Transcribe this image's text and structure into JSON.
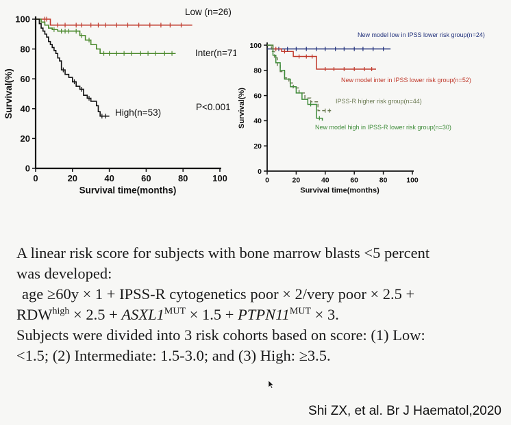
{
  "chart_data": [
    {
      "type": "line",
      "title": "",
      "xlabel": "Survival time(months)",
      "ylabel": "Survival(%)",
      "xlim": [
        0,
        100
      ],
      "ylim": [
        0,
        100
      ],
      "xticks": [
        "0",
        "20",
        "40",
        "60",
        "80",
        "100"
      ],
      "yticks": [
        "0",
        "20",
        "40",
        "60",
        "80",
        "100"
      ],
      "grid": false,
      "annotation": "P<0.001",
      "series": [
        {
          "name": "Low (n=26)",
          "color": "#c0392b",
          "x": [
            0,
            4,
            8,
            85
          ],
          "y": [
            100,
            100,
            96,
            96
          ],
          "censor_x": [
            5,
            6,
            12,
            16,
            22,
            25,
            30,
            34,
            38,
            44,
            50,
            56,
            62,
            68,
            73,
            79
          ]
        },
        {
          "name": "Inter(n=71)",
          "color": "#4c8a2e",
          "x": [
            0,
            3,
            5,
            7,
            9,
            12,
            20,
            24,
            27,
            30,
            33,
            35,
            76
          ],
          "y": [
            100,
            98,
            96,
            94,
            93,
            92,
            92,
            89,
            86,
            83,
            80,
            77,
            77
          ],
          "censor_x": [
            10,
            14,
            16,
            18,
            22,
            25,
            29,
            37,
            40,
            44,
            48,
            52,
            57,
            61,
            65,
            70,
            74
          ]
        },
        {
          "name": "High(n=53)",
          "color": "#111111",
          "x": [
            0,
            2,
            3,
            4,
            5,
            6,
            7,
            8,
            9,
            10,
            11,
            12,
            13,
            14,
            16,
            18,
            20,
            22,
            24,
            26,
            28,
            30,
            33,
            34,
            35,
            40
          ],
          "y": [
            100,
            97,
            94,
            92,
            90,
            88,
            85,
            83,
            81,
            79,
            77,
            74,
            72,
            66,
            63,
            61,
            58,
            55,
            53,
            49,
            47,
            45,
            42,
            38,
            35,
            35
          ],
          "censor_x": [
            15,
            21,
            25,
            29,
            36,
            38
          ]
        }
      ]
    },
    {
      "type": "line",
      "title": "",
      "xlabel": "Survival time(months)",
      "ylabel": "Survival(%)",
      "xlim": [
        0,
        100
      ],
      "ylim": [
        0,
        100
      ],
      "xticks": [
        "0",
        "20",
        "40",
        "60",
        "80",
        "100"
      ],
      "yticks": [
        "0",
        "20",
        "40",
        "60",
        "80",
        "100"
      ],
      "grid": false,
      "series": [
        {
          "name": "New model low in IPSS lower risk group(n=24)",
          "color": "#1f2f7a",
          "x": [
            0,
            85
          ],
          "y": [
            97,
            97
          ],
          "censor_x": [
            8,
            14,
            20,
            27,
            34,
            40,
            47,
            53,
            60,
            66,
            73,
            80
          ]
        },
        {
          "name": "New model inter in IPSS lower risk group(n=52)",
          "color": "#c0392b",
          "x": [
            0,
            4,
            10,
            18,
            34,
            75
          ],
          "y": [
            100,
            97,
            95,
            91,
            81,
            81
          ],
          "censor_x": [
            6,
            12,
            22,
            27,
            31,
            40,
            46,
            53,
            60,
            67,
            72
          ]
        },
        {
          "name": "IPSS-R higher risk group(n=44)",
          "color": "#6b7a52",
          "dashed": true,
          "x": [
            0,
            3,
            5,
            7,
            9,
            12,
            15,
            18,
            22,
            26,
            30,
            35,
            44
          ],
          "y": [
            100,
            95,
            90,
            84,
            79,
            74,
            70,
            66,
            62,
            58,
            55,
            48,
            48
          ],
          "censor_x": [
            40,
            43
          ]
        },
        {
          "name": "New model high in IPSS-R lower risk group(n=30)",
          "color": "#3f8c3a",
          "x": [
            0,
            4,
            6,
            9,
            12,
            16,
            20,
            24,
            28,
            34,
            38
          ],
          "y": [
            100,
            92,
            86,
            80,
            73,
            67,
            62,
            57,
            53,
            42,
            40
          ],
          "censor_x": [
            30,
            36
          ]
        }
      ]
    }
  ],
  "caption": {
    "line1": "A linear risk score for subjects with bone marrow blasts <5 percent",
    "line2": "was developed:",
    "line3": "age ≥60y × 1 + IPSS-R cytogenetics poor × 2/very poor × 2.5 +",
    "line4_a": "RDW",
    "line4_high": "high",
    "line4_b": " × 2.5 + ",
    "line4_asxl1": "ASXL1",
    "line4_mut1": "MUT",
    "line4_c": " × 1.5 + ",
    "line4_ptpn11": "PTPN11",
    "line4_mut2": "MUT",
    "line4_d": " × 3.",
    "line5": "Subjects were divided into 3 risk cohorts based on score: (1) Low:",
    "line6": "<1.5; (2) Intermediate: 1.5-3.0; and (3) High: ≥3.5."
  },
  "citation": "Shi ZX, et al. Br J Haematol,2020",
  "cursor_icon": "mouse-pointer-icon"
}
